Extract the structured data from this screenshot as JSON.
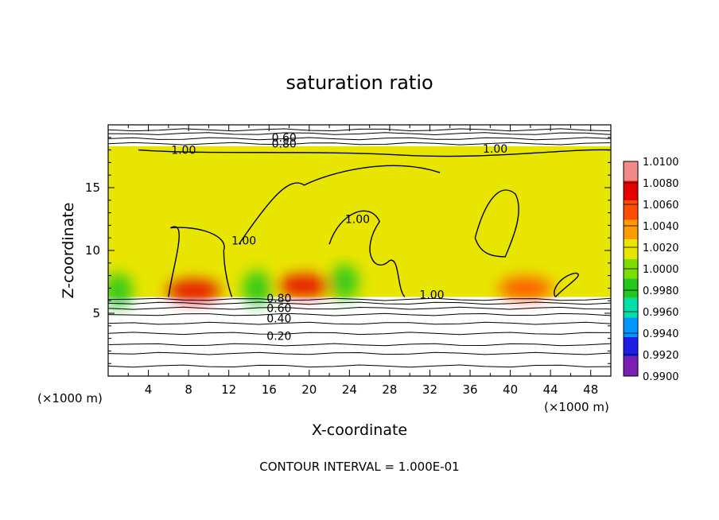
{
  "chart_data": {
    "type": "heatmap",
    "title": "saturation ratio",
    "xlabel": "X-coordinate",
    "ylabel": "Z-coordinate",
    "x_unit": "(×1000 m)",
    "x_unit_right": "(×1000 m)",
    "xlim": [
      0,
      50
    ],
    "ylim": [
      0,
      20
    ],
    "x_ticks": [
      4,
      8,
      12,
      16,
      20,
      24,
      28,
      32,
      36,
      40,
      44,
      48
    ],
    "y_ticks": [
      5,
      10,
      15
    ],
    "footer": "CONTOUR INTERVAL = 1.000E-01",
    "colorbar": {
      "levels": [
        "1.0100",
        "1.0080",
        "1.0060",
        "1.0040",
        "1.0020",
        "1.0000",
        "0.9980",
        "0.9960",
        "0.9940",
        "0.9920",
        "0.9900"
      ],
      "colors": [
        "#f28a8a",
        "#e60000",
        "#ff4d00",
        "#ff9a00",
        "#e8e600",
        "#7ddc00",
        "#22c81e",
        "#00e0a8",
        "#0096ff",
        "#1e1ee6",
        "#7a1eb4"
      ]
    },
    "field_region": {
      "x_range": [
        0,
        50
      ],
      "z_range": [
        6.3,
        18.3
      ],
      "dominant_value_range": [
        1.0,
        1.002
      ],
      "hot_spots": [
        {
          "x": 8.5,
          "z": 6.8,
          "value": 1.006
        },
        {
          "x": 19.5,
          "z": 7.2,
          "value": 1.006
        },
        {
          "x": 41.5,
          "z": 7.0,
          "value": 1.004
        }
      ],
      "cool_spots": [
        {
          "x": 1.0,
          "z": 6.8,
          "value": 0.996
        },
        {
          "x": 23.5,
          "z": 7.5,
          "value": 0.996
        },
        {
          "x": 14.8,
          "z": 7.0,
          "value": 0.996
        }
      ]
    },
    "contour_labels": [
      {
        "text": "0.60",
        "x": 17.5,
        "z": 19.0
      },
      {
        "text": "0.80",
        "x": 17.5,
        "z": 18.5
      },
      {
        "text": "1.00",
        "x": 7.5,
        "z": 18.0
      },
      {
        "text": "1.00",
        "x": 38.5,
        "z": 18.1
      },
      {
        "text": "1.00",
        "x": 13.5,
        "z": 10.8
      },
      {
        "text": "1.00",
        "x": 24.8,
        "z": 12.5
      },
      {
        "text": "1.00",
        "x": 32.2,
        "z": 6.5
      },
      {
        "text": "0.80",
        "x": 17.0,
        "z": 6.2
      },
      {
        "text": "0.60",
        "x": 17.0,
        "z": 5.4
      },
      {
        "text": "0.40",
        "x": 17.0,
        "z": 4.6
      },
      {
        "text": "0.20",
        "x": 17.0,
        "z": 3.2
      }
    ],
    "horizontal_contour_levels_z": [
      0.8,
      1.8,
      2.5,
      3.4,
      4.2,
      4.9,
      5.4,
      5.8,
      6.1,
      18.5,
      18.9,
      19.3,
      19.6
    ],
    "grid": false
  }
}
